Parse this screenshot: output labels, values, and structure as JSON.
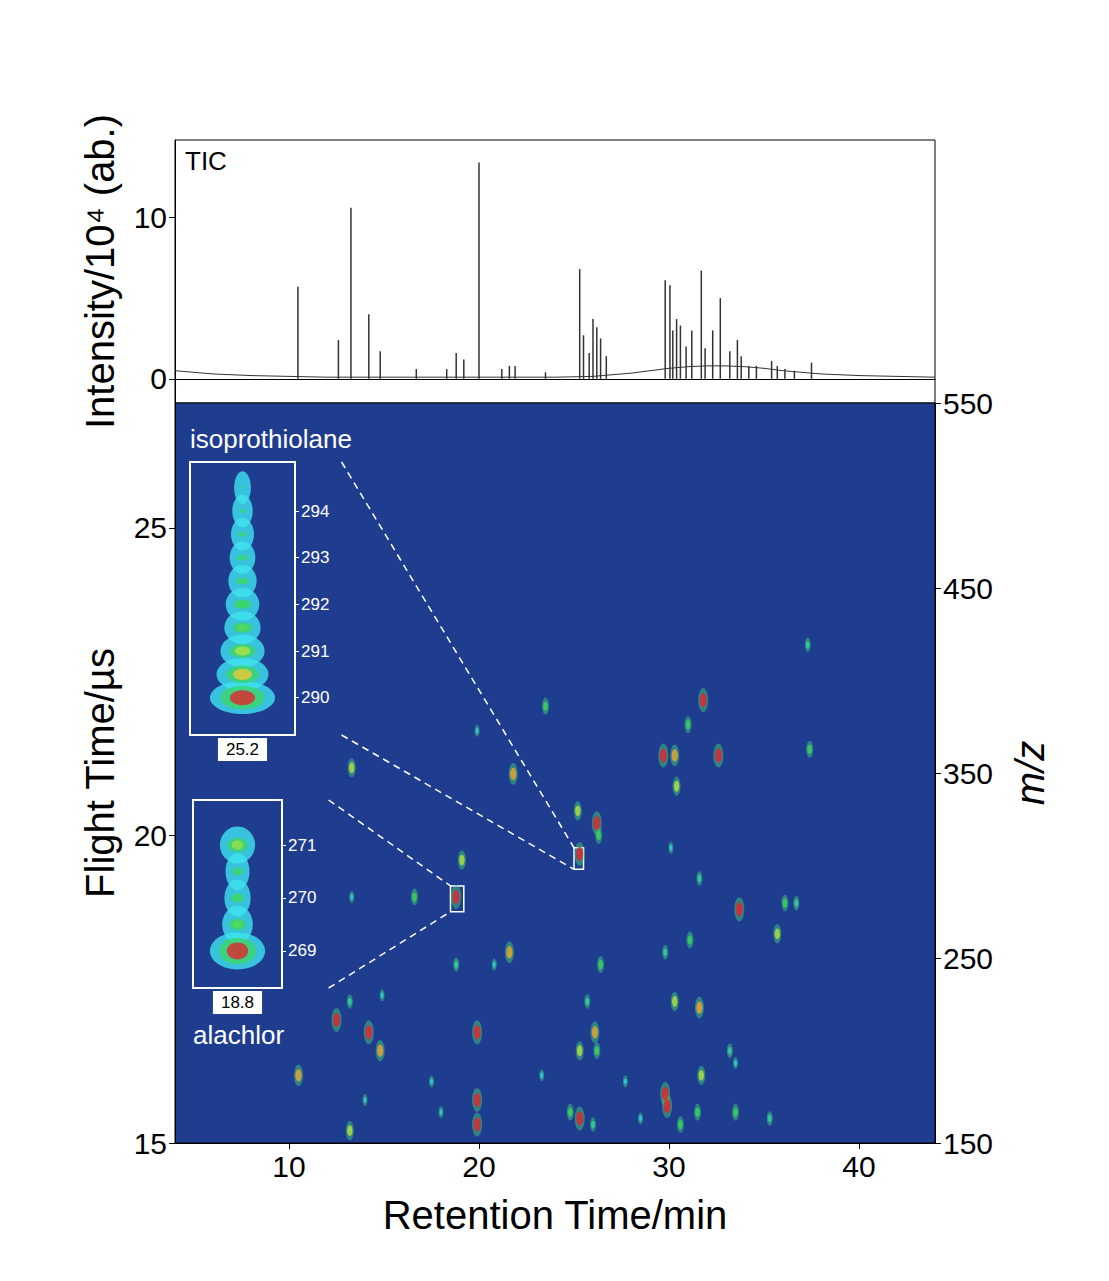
{
  "chart_data": [
    {
      "type": "line",
      "title": "TIC",
      "y_label": "Intensity/10⁴ (ab.)",
      "xlim": [
        4,
        44
      ],
      "ylim": [
        -1.5,
        14.8
      ],
      "yticks": [
        0,
        10
      ],
      "tick_labels": "y",
      "series": [
        {
          "type": "line",
          "color": "#333333",
          "x": [
            4,
            5,
            6,
            8,
            10,
            12,
            14,
            16,
            18,
            20,
            22,
            24,
            26,
            27,
            28,
            29,
            30,
            31,
            32,
            33,
            34,
            35,
            36,
            37,
            38,
            40,
            42,
            44
          ],
          "values": [
            0.5,
            0.4,
            0.3,
            0.2,
            0.15,
            0.1,
            0.1,
            0.1,
            0.1,
            0.1,
            0.1,
            0.1,
            0.15,
            0.25,
            0.35,
            0.5,
            0.65,
            0.75,
            0.8,
            0.8,
            0.75,
            0.65,
            0.5,
            0.4,
            0.3,
            0.2,
            0.15,
            0.1
          ]
        },
        {
          "type": "bar",
          "color": "#333333",
          "x": [
            10.47,
            12.6,
            13.26,
            14.2,
            14.8,
            16.7,
            18.3,
            18.8,
            19.2,
            20.0,
            21.2,
            21.6,
            21.9,
            23.5,
            25.3,
            25.5,
            25.8,
            26.0,
            26.2,
            26.4,
            26.7,
            29.8,
            30.05,
            30.2,
            30.4,
            30.6,
            30.9,
            31.2,
            31.7,
            31.9,
            32.3,
            32.7,
            33.2,
            33.6,
            33.8,
            34.2,
            34.6,
            35.4,
            35.7,
            36.1,
            36.6,
            37.5
          ],
          "values": [
            5.7,
            2.4,
            10.6,
            4.0,
            1.7,
            0.6,
            0.6,
            1.6,
            1.2,
            13.4,
            0.6,
            0.8,
            0.8,
            0.4,
            6.8,
            2.7,
            1.6,
            3.7,
            3.2,
            2.5,
            1.4,
            6.1,
            5.8,
            3.0,
            3.7,
            3.3,
            2.0,
            3.0,
            6.7,
            1.9,
            3.0,
            5.0,
            1.7,
            2.4,
            1.4,
            0.8,
            0.8,
            1.1,
            0.8,
            0.6,
            0.5,
            1.0
          ]
        }
      ]
    },
    {
      "type": "scatter",
      "x_label": "Retention Time/min",
      "y_label": "Flight Time/µs",
      "y2_label": "m/z",
      "xlim": [
        4,
        44
      ],
      "xticks": [
        10,
        20,
        30,
        40
      ],
      "ylim": [
        15,
        27.03
      ],
      "yticks": [
        15,
        20,
        25
      ],
      "y2lim": [
        150,
        550
      ],
      "y2ticks": [
        150,
        250,
        350,
        450,
        550
      ],
      "spots": [
        [
          37.3,
          23.1,
          0.5
        ],
        [
          37.4,
          21.4,
          0.6
        ],
        [
          31.8,
          22.2,
          0.9
        ],
        [
          31.0,
          21.8,
          0.6
        ],
        [
          29.7,
          21.3,
          0.9
        ],
        [
          30.3,
          21.3,
          0.8
        ],
        [
          32.6,
          21.3,
          0.9
        ],
        [
          30.4,
          20.8,
          0.7
        ],
        [
          23.5,
          22.1,
          0.6
        ],
        [
          19.9,
          21.7,
          0.4
        ],
        [
          13.3,
          21.1,
          0.7
        ],
        [
          21.8,
          21.0,
          0.8
        ],
        [
          25.2,
          20.4,
          0.7
        ],
        [
          26.2,
          20.2,
          0.9
        ],
        [
          26.3,
          20.0,
          0.6
        ],
        [
          25.3,
          19.7,
          0.9
        ],
        [
          19.1,
          19.6,
          0.7
        ],
        [
          16.6,
          19.0,
          0.6
        ],
        [
          18.8,
          19.0,
          0.9
        ],
        [
          33.7,
          18.8,
          0.9
        ],
        [
          36.1,
          18.9,
          0.6
        ],
        [
          36.7,
          18.9,
          0.5
        ],
        [
          35.7,
          18.4,
          0.7
        ],
        [
          31.1,
          18.3,
          0.6
        ],
        [
          21.6,
          18.1,
          0.8
        ],
        [
          18.8,
          17.9,
          0.5
        ],
        [
          20.8,
          17.9,
          0.4
        ],
        [
          26.4,
          17.9,
          0.6
        ],
        [
          14.9,
          17.4,
          0.4
        ],
        [
          30.3,
          17.3,
          0.7
        ],
        [
          31.6,
          17.2,
          0.8
        ],
        [
          12.5,
          17.0,
          0.9
        ],
        [
          14.2,
          16.8,
          0.9
        ],
        [
          14.8,
          16.5,
          0.8
        ],
        [
          19.9,
          16.8,
          0.9
        ],
        [
          26.1,
          16.8,
          0.8
        ],
        [
          25.3,
          16.5,
          0.7
        ],
        [
          26.2,
          16.5,
          0.6
        ],
        [
          10.5,
          16.1,
          0.8
        ],
        [
          19.9,
          15.7,
          0.9
        ],
        [
          19.9,
          15.3,
          0.9
        ],
        [
          25.3,
          15.4,
          0.9
        ],
        [
          24.8,
          15.5,
          0.6
        ],
        [
          29.8,
          15.8,
          0.9
        ],
        [
          29.9,
          15.6,
          0.9
        ],
        [
          31.5,
          15.5,
          0.6
        ],
        [
          31.7,
          16.1,
          0.7
        ],
        [
          33.5,
          15.5,
          0.6
        ],
        [
          13.2,
          15.2,
          0.7
        ],
        [
          18.0,
          15.5,
          0.4
        ],
        [
          26.0,
          15.3,
          0.5
        ],
        [
          35.3,
          15.4,
          0.5
        ],
        [
          30.6,
          15.3,
          0.6
        ],
        [
          33.2,
          16.5,
          0.5
        ],
        [
          33.5,
          16.3,
          0.4
        ],
        [
          14.0,
          15.7,
          0.4
        ],
        [
          17.5,
          16.0,
          0.4
        ],
        [
          25.7,
          17.3,
          0.5
        ],
        [
          27.7,
          16.0,
          0.4
        ],
        [
          28.5,
          15.4,
          0.4
        ],
        [
          29.8,
          18.1,
          0.5
        ],
        [
          31.6,
          19.3,
          0.5
        ],
        [
          30.1,
          19.8,
          0.4
        ],
        [
          13.2,
          17.3,
          0.5
        ],
        [
          13.3,
          19.0,
          0.4
        ],
        [
          23.3,
          16.1,
          0.4
        ]
      ],
      "insets": [
        {
          "label": "isoprothiolane",
          "xlim": [
            25.1,
            25.3
          ],
          "xticks": [
            25.2
          ],
          "ylim": [
            289.2,
            295.05
          ],
          "yticks": [
            290,
            291,
            292,
            293,
            294
          ],
          "spots": [
            [
              25.2,
              290,
              1.0
            ],
            [
              25.2,
              290.5,
              0.75
            ],
            [
              25.2,
              291,
              0.6
            ],
            [
              25.2,
              291.5,
              0.45
            ],
            [
              25.2,
              292,
              0.4
            ],
            [
              25.2,
              292.5,
              0.3
            ],
            [
              25.2,
              293,
              0.25
            ],
            [
              25.2,
              293.5,
              0.2
            ],
            [
              25.2,
              294,
              0.15
            ],
            [
              25.2,
              294.5,
              0.08
            ]
          ],
          "zoom_box": {
            "xlim": [
              25.0,
              25.5
            ],
            "ylim": [
              19.45,
              19.8
            ]
          }
        },
        {
          "label": "alachlor",
          "xlim": [
            18.7,
            18.9
          ],
          "xticks": [
            18.8
          ],
          "ylim": [
            268.3,
            271.85
          ],
          "yticks": [
            269,
            270,
            271
          ],
          "spots": [
            [
              18.8,
              269,
              1.0
            ],
            [
              18.8,
              269.5,
              0.45
            ],
            [
              18.8,
              270,
              0.35
            ],
            [
              18.8,
              270.5,
              0.3
            ],
            [
              18.8,
              271,
              0.55
            ]
          ],
          "zoom_box": {
            "xlim": [
              18.5,
              19.2
            ],
            "ylim": [
              18.76,
              19.18
            ]
          }
        }
      ]
    }
  ]
}
